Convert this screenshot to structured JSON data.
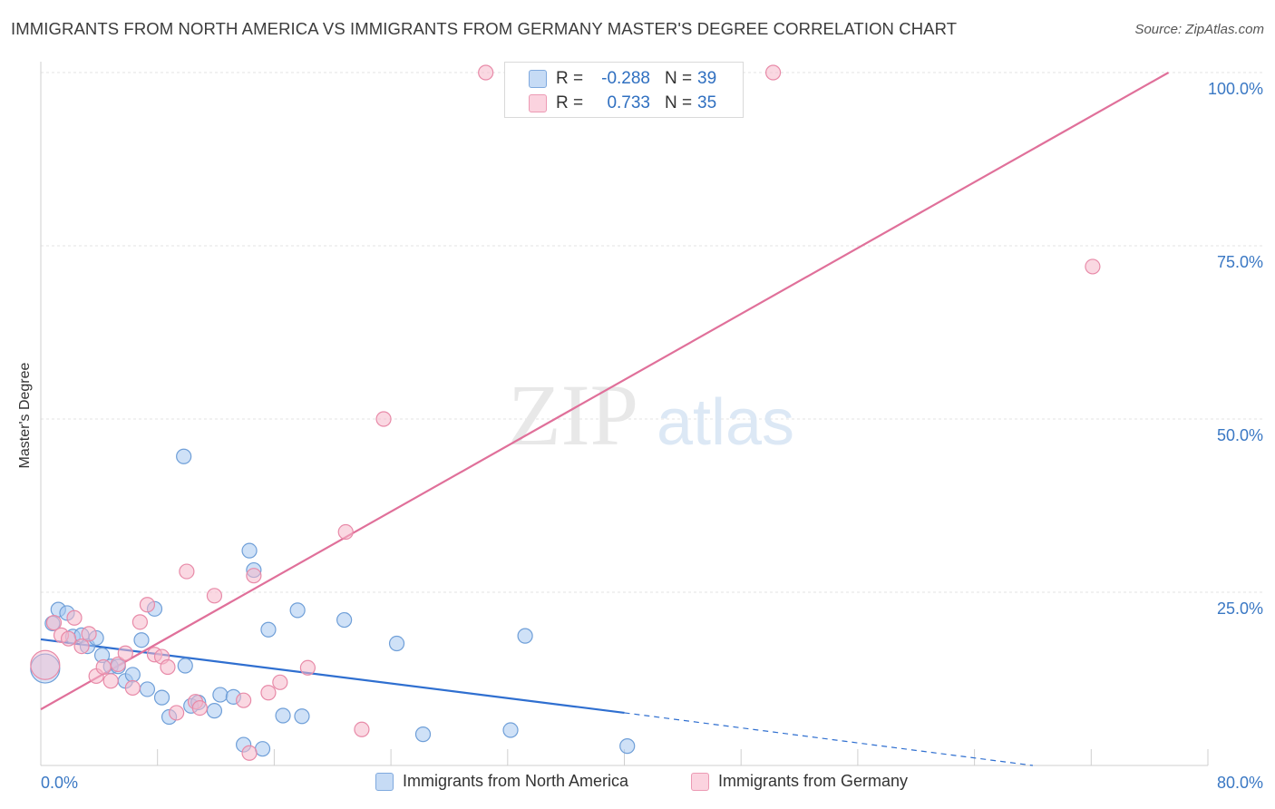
{
  "title": "IMMIGRANTS FROM NORTH AMERICA VS IMMIGRANTS FROM GERMANY MASTER'S DEGREE CORRELATION CHART",
  "source": "Source: ZipAtlas.com",
  "watermark": {
    "zip": "ZIP",
    "atlas": "atlas"
  },
  "stats": [
    {
      "r_label": "R =",
      "r_value": "-0.288",
      "n_label": "N =",
      "n_value": "39",
      "color": "#a8c8f0"
    },
    {
      "r_label": "R =",
      "r_value": "0.733",
      "n_label": "N =",
      "n_value": "35",
      "color": "#f6b8cb"
    }
  ],
  "chart_data": {
    "type": "scatter",
    "title": "IMMIGRANTS FROM NORTH AMERICA VS IMMIGRANTS FROM GERMANY MASTER'S DEGREE CORRELATION CHART",
    "xlabel": "",
    "ylabel": "Master's Degree",
    "xlim": [
      0,
      80
    ],
    "ylim": [
      0,
      100
    ],
    "x_tick_labels": [
      "0.0%",
      "80.0%"
    ],
    "y_ticks": [
      25,
      50,
      75,
      100
    ],
    "y_tick_labels": [
      "25.0%",
      "50.0%",
      "75.0%",
      "100.0%"
    ],
    "grid": true,
    "legend_position": "bottom",
    "series": [
      {
        "name": "Immigrants from North America",
        "color": "#a8c8f0",
        "stroke": "#6f9fd8",
        "trend_color": "#2f6fd0",
        "trend": {
          "x0": 0,
          "y0": 18.2,
          "x1": 40,
          "y1": 7.6,
          "dashed_to_x": 68,
          "dashed_to_y": 0
        },
        "points": [
          [
            0.3,
            14.0
          ],
          [
            0.8,
            20.5
          ],
          [
            1.2,
            22.5
          ],
          [
            1.8,
            22.0
          ],
          [
            2.2,
            18.6
          ],
          [
            2.8,
            18.8
          ],
          [
            3.2,
            17.2
          ],
          [
            3.8,
            18.4
          ],
          [
            4.2,
            15.9
          ],
          [
            4.8,
            14.3
          ],
          [
            5.3,
            14.3
          ],
          [
            5.8,
            12.2
          ],
          [
            6.3,
            13.1
          ],
          [
            6.9,
            18.1
          ],
          [
            7.3,
            11.0
          ],
          [
            7.8,
            22.6
          ],
          [
            8.3,
            9.8
          ],
          [
            8.8,
            7.0
          ],
          [
            9.8,
            44.6
          ],
          [
            9.9,
            14.4
          ],
          [
            10.3,
            8.6
          ],
          [
            10.8,
            9.1
          ],
          [
            11.9,
            7.9
          ],
          [
            12.3,
            10.2
          ],
          [
            13.2,
            9.9
          ],
          [
            13.9,
            3.0
          ],
          [
            14.3,
            31.0
          ],
          [
            14.6,
            28.2
          ],
          [
            15.2,
            2.4
          ],
          [
            15.6,
            19.6
          ],
          [
            16.6,
            7.2
          ],
          [
            17.6,
            22.4
          ],
          [
            17.9,
            7.1
          ],
          [
            20.8,
            21.0
          ],
          [
            24.4,
            17.6
          ],
          [
            26.2,
            4.5
          ],
          [
            32.2,
            5.1
          ],
          [
            33.2,
            18.7
          ],
          [
            40.2,
            2.8
          ]
        ]
      },
      {
        "name": "Immigrants from Germany",
        "color": "#f6b8cb",
        "stroke": "#e88aa8",
        "trend_color": "#e0709a",
        "trend": {
          "x0": 0,
          "y0": 8.1,
          "x1": 77.3,
          "y1": 100
        },
        "points": [
          [
            0.3,
            14.5
          ],
          [
            0.9,
            20.6
          ],
          [
            1.4,
            18.8
          ],
          [
            1.9,
            18.3
          ],
          [
            2.3,
            21.3
          ],
          [
            2.8,
            17.2
          ],
          [
            3.3,
            19.0
          ],
          [
            3.8,
            12.9
          ],
          [
            4.3,
            14.2
          ],
          [
            4.8,
            12.2
          ],
          [
            5.3,
            14.6
          ],
          [
            5.8,
            16.2
          ],
          [
            6.3,
            11.2
          ],
          [
            6.8,
            20.7
          ],
          [
            7.3,
            23.2
          ],
          [
            7.8,
            16.0
          ],
          [
            8.3,
            15.7
          ],
          [
            8.7,
            14.2
          ],
          [
            9.3,
            7.6
          ],
          [
            10.0,
            28.0
          ],
          [
            10.6,
            9.2
          ],
          [
            10.9,
            8.3
          ],
          [
            11.9,
            24.5
          ],
          [
            13.9,
            9.4
          ],
          [
            14.3,
            1.8
          ],
          [
            14.6,
            27.4
          ],
          [
            15.6,
            10.5
          ],
          [
            16.4,
            12.0
          ],
          [
            18.3,
            14.1
          ],
          [
            20.9,
            33.7
          ],
          [
            22.0,
            5.2
          ],
          [
            23.5,
            50.0
          ],
          [
            30.5,
            100.0
          ],
          [
            50.2,
            100.0
          ],
          [
            72.1,
            72.0
          ]
        ]
      }
    ]
  }
}
